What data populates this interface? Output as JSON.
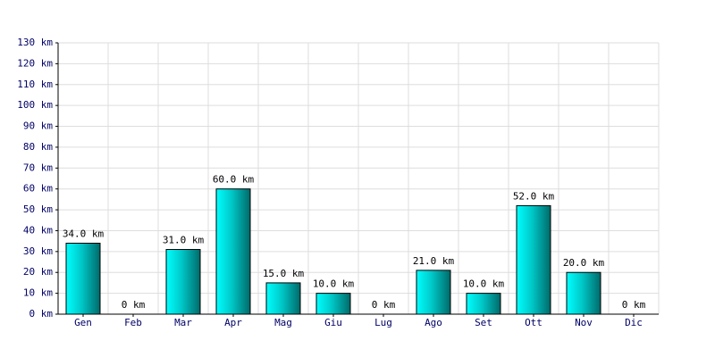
{
  "chart_data": {
    "type": "bar",
    "categories": [
      "Gen",
      "Feb",
      "Mar",
      "Apr",
      "Mag",
      "Giu",
      "Lug",
      "Ago",
      "Set",
      "Ott",
      "Nov",
      "Dic"
    ],
    "values": [
      34,
      0,
      31,
      60,
      15,
      10,
      0,
      21,
      10,
      52,
      20,
      0
    ],
    "value_labels": [
      "34.0 km",
      "0 km",
      "31.0 km",
      "60.0 km",
      "15.0 km",
      "10.0 km",
      "0 km",
      "21.0 km",
      "10.0 km",
      "52.0 km",
      "20.0 km",
      "0 km"
    ],
    "color": "#00c8c8",
    "ylim": [
      0,
      130
    ],
    "yticks": [
      {
        "value": 0,
        "label": "0 km"
      },
      {
        "value": 10,
        "label": "10 km"
      },
      {
        "value": 20,
        "label": "20 km"
      },
      {
        "value": 30,
        "label": "30 km"
      },
      {
        "value": 40,
        "label": "40 km"
      },
      {
        "value": 50,
        "label": "50 km"
      },
      {
        "value": 60,
        "label": "60 km"
      },
      {
        "value": 70,
        "label": "70 km"
      },
      {
        "value": 80,
        "label": "80 km"
      },
      {
        "value": 90,
        "label": "90 km"
      },
      {
        "value": 100,
        "label": "100 km"
      },
      {
        "value": 110,
        "label": "110 km"
      },
      {
        "value": 120,
        "label": "120 km"
      },
      {
        "value": 130,
        "label": "130 km"
      }
    ],
    "grid": true
  }
}
